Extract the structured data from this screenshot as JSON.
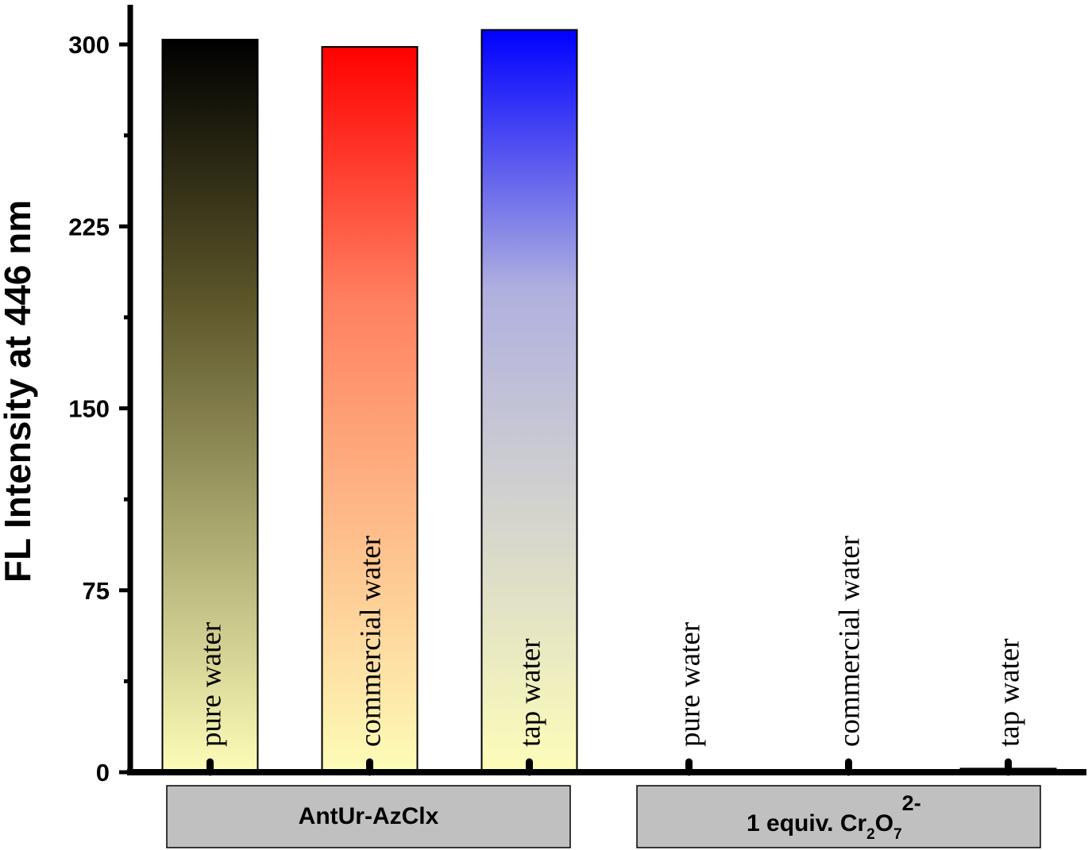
{
  "chart_data": {
    "type": "bar",
    "ylabel": "FL Intensity at 446 nm",
    "xlabel": "",
    "ylim": [
      0,
      315
    ],
    "yticks": [
      "0",
      "75",
      "150",
      "225",
      "300"
    ],
    "categories": [
      "pure water",
      "commercial water",
      "tap water",
      "pure water",
      "commercial water",
      "tap water"
    ],
    "values": [
      302,
      299,
      306,
      0,
      0,
      1.5
    ],
    "groups": [
      {
        "label": "AntUr-AzClx",
        "members": [
          0,
          1,
          2
        ]
      },
      {
        "label_main": "1 equiv. Cr",
        "label_sub1": "2",
        "label_mid": "O",
        "label_sub2": "7",
        "label_sup": "2-",
        "members": [
          3,
          4,
          5
        ]
      }
    ],
    "bar_colors": [
      {
        "top": "#000000",
        "mid": "#5a5428",
        "bottom": "#fdfdb8"
      },
      {
        "top": "#ff0000",
        "mid": "#ff8060",
        "bottom": "#fdfdb8"
      },
      {
        "top": "#0000ff",
        "mid": "#b0b0e0",
        "bottom": "#fdfdb8"
      },
      {
        "top": "#111111",
        "mid": "#111111",
        "bottom": "#111111"
      },
      {
        "top": "#111111",
        "mid": "#111111",
        "bottom": "#111111"
      },
      {
        "top": "#111111",
        "mid": "#111111",
        "bottom": "#111111"
      }
    ],
    "group_box_color": "#c0c0c0"
  }
}
